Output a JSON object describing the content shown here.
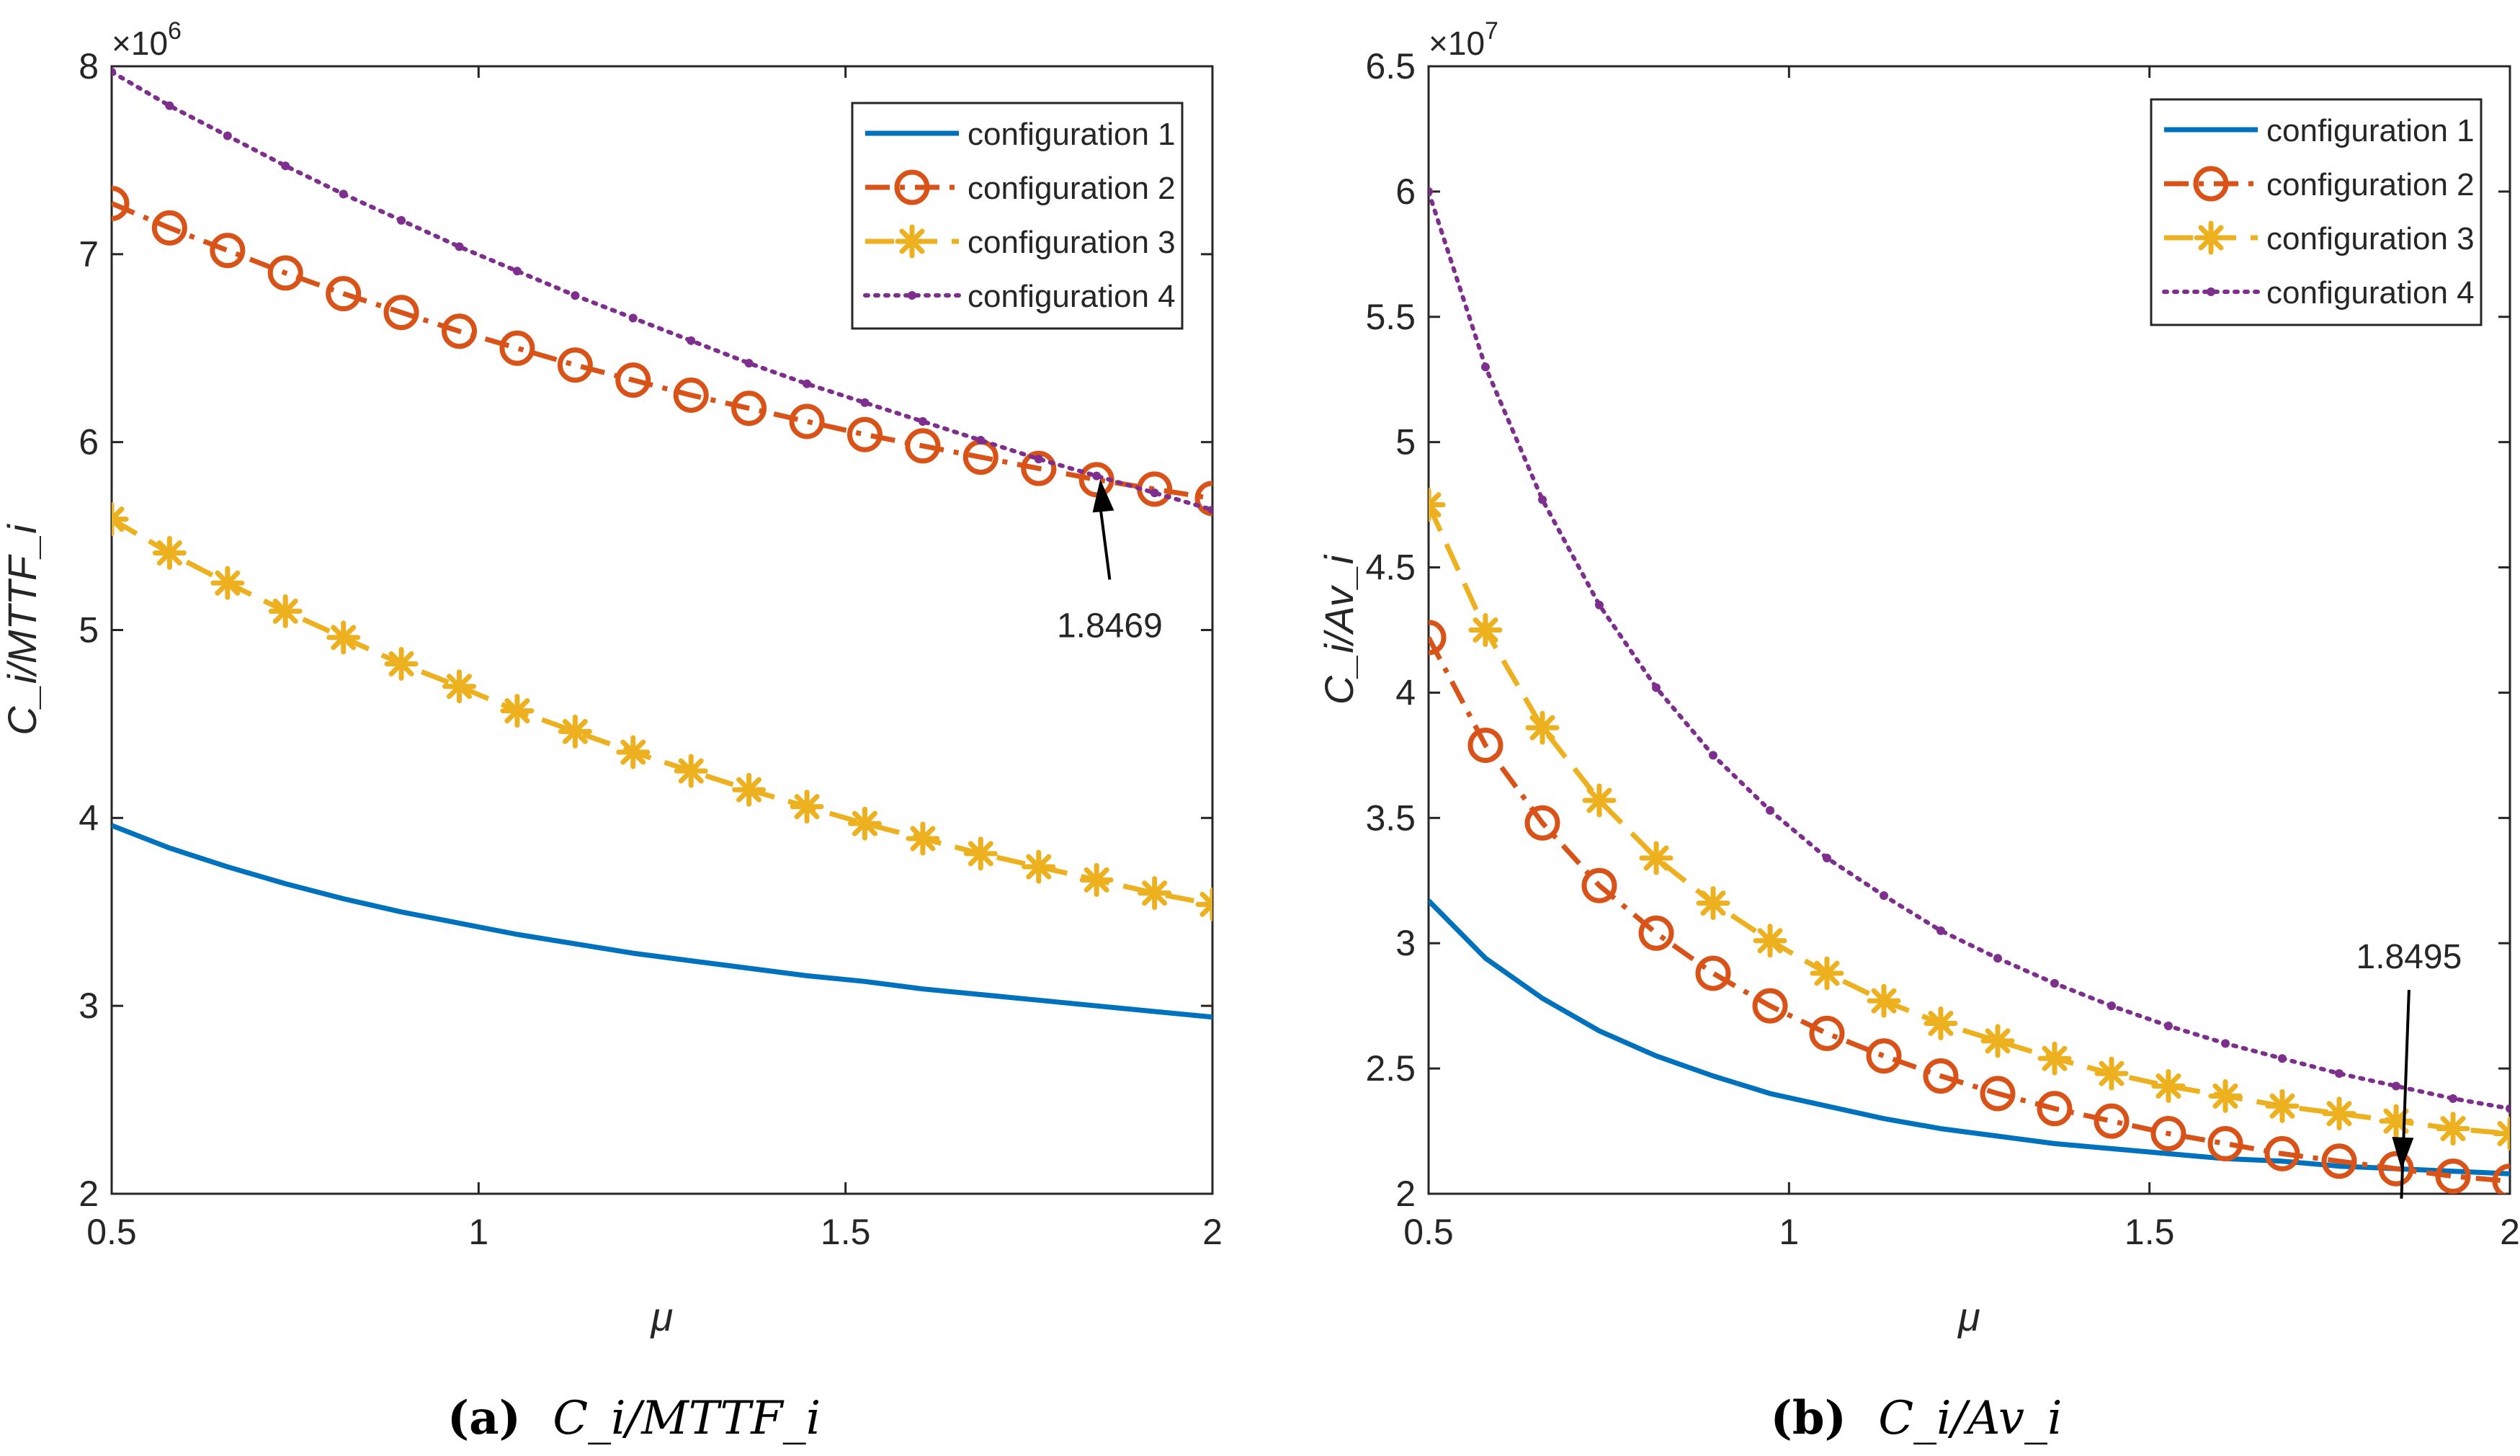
{
  "chart_data": [
    {
      "type": "line",
      "panel_label": "(a)",
      "caption_math": "C_i/MTTF_i",
      "xlabel": "μ",
      "ylabel": "C_i/MTTF_i",
      "y_exponent": "×10^6",
      "xlim": [
        0.5,
        2
      ],
      "ylim": [
        2000000,
        8000000
      ],
      "xticks": [
        "0.5",
        "1",
        "1.5",
        "2"
      ],
      "yticks": [
        "2",
        "3",
        "4",
        "5",
        "6",
        "7",
        "8"
      ],
      "grid": false,
      "legend_position": "top-right",
      "x": [
        0.5,
        0.5789,
        0.6579,
        0.7368,
        0.8158,
        0.8947,
        0.9737,
        1.0526,
        1.1316,
        1.2105,
        1.2895,
        1.3684,
        1.4474,
        1.5263,
        1.6053,
        1.6842,
        1.7632,
        1.8421,
        1.9211,
        2.0
      ],
      "series": [
        {
          "name": "configuration 1",
          "color": "#0072BD",
          "style": "solid",
          "values": [
            3960000,
            3840000,
            3740000,
            3650000,
            3570000,
            3500000,
            3440000,
            3380000,
            3330000,
            3280000,
            3240000,
            3200000,
            3160000,
            3130000,
            3090000,
            3060000,
            3030000,
            3000000,
            2970000,
            2940000
          ]
        },
        {
          "name": "configuration 2",
          "color": "#D95319",
          "style": "dash-dot",
          "marker": "circle",
          "values": [
            7270000,
            7140000,
            7020000,
            6900000,
            6790000,
            6690000,
            6590000,
            6500000,
            6410000,
            6330000,
            6250000,
            6180000,
            6110000,
            6040000,
            5980000,
            5920000,
            5860000,
            5800000,
            5750000,
            5700000
          ]
        },
        {
          "name": "configuration 3",
          "color": "#EDB120",
          "style": "dashed",
          "marker": "asterisk",
          "values": [
            5590000,
            5410000,
            5250000,
            5100000,
            4960000,
            4820000,
            4700000,
            4570000,
            4460000,
            4350000,
            4250000,
            4150000,
            4060000,
            3970000,
            3890000,
            3810000,
            3740000,
            3670000,
            3600000,
            3540000
          ]
        },
        {
          "name": "configuration 4",
          "color": "#7E2F8E",
          "style": "dotted",
          "marker": "dot",
          "values": [
            7970000,
            7790000,
            7630000,
            7470000,
            7320000,
            7180000,
            7040000,
            6910000,
            6780000,
            6660000,
            6540000,
            6420000,
            6310000,
            6210000,
            6110000,
            6010000,
            5910000,
            5820000,
            5730000,
            5640000
          ]
        }
      ],
      "annotation": {
        "text": "1.8469",
        "x": 1.8469,
        "y": 5810000,
        "label_x": 1.86,
        "label_y": 5000000
      }
    },
    {
      "type": "line",
      "panel_label": "(b)",
      "caption_math": "C_i/Av_i",
      "xlabel": "μ",
      "ylabel": "C_i/Av_i",
      "y_exponent": "×10^7",
      "xlim": [
        0.5,
        2
      ],
      "ylim": [
        20000000,
        65000000
      ],
      "xticks": [
        "0.5",
        "1",
        "1.5",
        "2"
      ],
      "yticks": [
        "2",
        "2.5",
        "3",
        "3.5",
        "4",
        "4.5",
        "5",
        "5.5",
        "6",
        "6.5"
      ],
      "grid": false,
      "legend_position": "top-right",
      "x": [
        0.5,
        0.5789,
        0.6579,
        0.7368,
        0.8158,
        0.8947,
        0.9737,
        1.0526,
        1.1316,
        1.2105,
        1.2895,
        1.3684,
        1.4474,
        1.5263,
        1.6053,
        1.6842,
        1.7632,
        1.8421,
        1.9211,
        2.0
      ],
      "series": [
        {
          "name": "configuration 1",
          "color": "#0072BD",
          "style": "solid",
          "values": [
            31700000,
            29400000,
            27800000,
            26500000,
            25500000,
            24700000,
            24000000,
            23500000,
            23000000,
            22600000,
            22300000,
            22000000,
            21800000,
            21600000,
            21400000,
            21300000,
            21100000,
            21000000,
            20900000,
            20800000
          ]
        },
        {
          "name": "configuration 2",
          "color": "#D95319",
          "style": "dash-dot",
          "marker": "circle",
          "values": [
            42200000,
            37900000,
            34800000,
            32300000,
            30400000,
            28800000,
            27500000,
            26400000,
            25500000,
            24700000,
            24000000,
            23400000,
            22900000,
            22400000,
            22000000,
            21600000,
            21300000,
            21000000,
            20700000,
            20500000
          ]
        },
        {
          "name": "configuration 3",
          "color": "#EDB120",
          "style": "dashed",
          "marker": "asterisk",
          "values": [
            47500000,
            42500000,
            38600000,
            35700000,
            33400000,
            31600000,
            30100000,
            28800000,
            27700000,
            26800000,
            26100000,
            25400000,
            24800000,
            24300000,
            23900000,
            23500000,
            23200000,
            22900000,
            22600000,
            22400000
          ]
        },
        {
          "name": "configuration 4",
          "color": "#7E2F8E",
          "style": "dotted",
          "marker": "dot",
          "values": [
            60000000,
            53000000,
            47700000,
            43500000,
            40200000,
            37500000,
            35300000,
            33400000,
            31900000,
            30500000,
            29400000,
            28400000,
            27500000,
            26700000,
            26000000,
            25400000,
            24800000,
            24300000,
            23800000,
            23400000
          ]
        }
      ],
      "annotation": {
        "text": "1.8495",
        "x": 1.8495,
        "y": 20900000,
        "label_x": 1.86,
        "label_y": 29000000
      }
    }
  ]
}
